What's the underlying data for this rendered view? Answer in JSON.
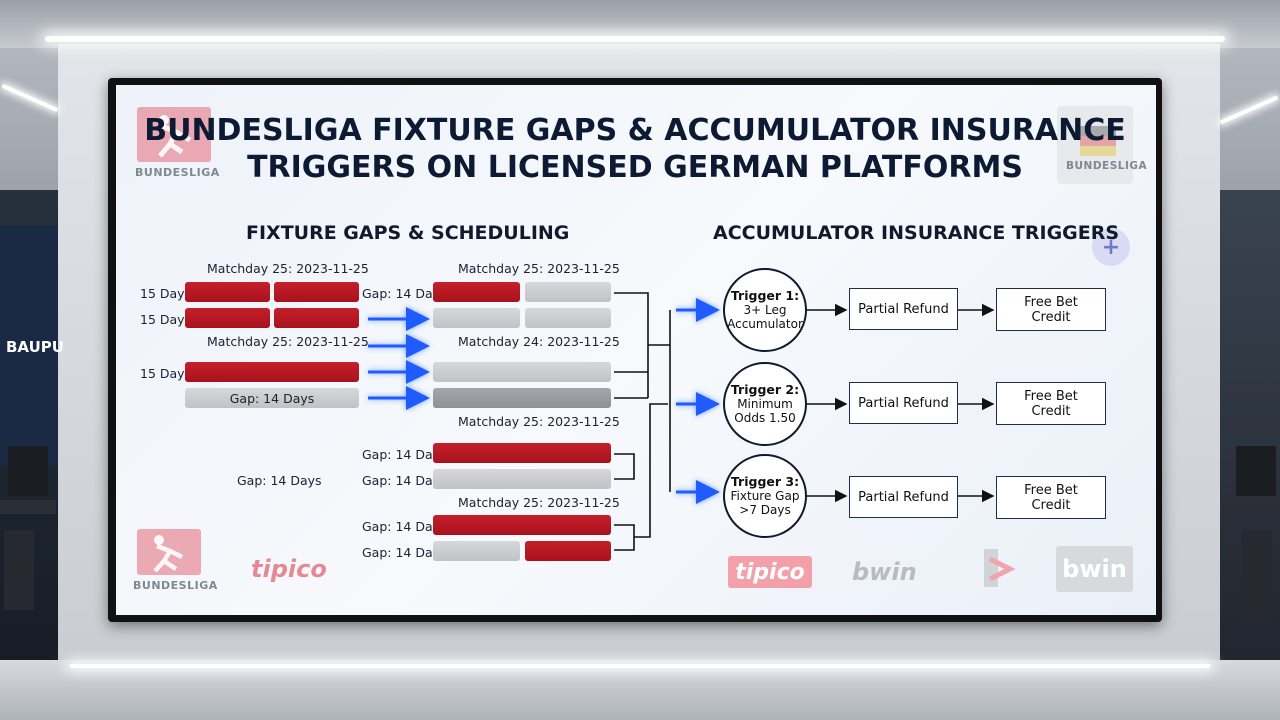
{
  "room": {
    "side_sign": "BAUPU"
  },
  "title": {
    "line1": "BUNDESLIGA FIXTURE GAPS & ACCUMULATOR INSURANCE",
    "line2": "TRIGGERS ON LICENSED GERMAN PLATFORMS"
  },
  "logos": {
    "bundesliga_top": "BUNDESLIGA",
    "bundesliga_top_right": "BUNDESLIGA",
    "bundesliga_bottom": "BUNDESLIGA",
    "tipico_left": "tipico",
    "tipico_right": "tipico",
    "bwin_1": "bwin",
    "bwin_2": "bwin"
  },
  "left": {
    "heading": "FIXTURE GAPS & SCHEDULING",
    "col1_header_1": "Matchday 25: 2023-11-25",
    "col1_header_2": "Matchday 25: 2023-11-25",
    "col2_header_1": "Matchday 25: 2023-11-25",
    "col2_header_2": "Matchday 24: 2023-11-25",
    "col2_header_3": "Matchday 25: 2023-11-25",
    "col2_header_4": "Matchday 25: 2023-11-25",
    "row_label_1": "15 Days",
    "row_label_2": "15 Days",
    "row_label_3": "15 Days",
    "gap_bar_label": "Gap: 14 Days",
    "gap_mid_label": "Gap: 14 Days",
    "gap_left_label": "Gap: 14 Days",
    "gap_row_1": "Gap: 14 Days",
    "gap_row_2": "Gap: 14 Days",
    "gap_row_3": "Gap: 14 Days",
    "gap_row_4": "Gap: 14 Days"
  },
  "right": {
    "heading": "ACCUMULATOR INSURANCE TRIGGERS",
    "triggers": [
      {
        "title": "Trigger 1:",
        "line1": "3+ Leg",
        "line2": "Accumulator",
        "refund": "Partial Refund",
        "credit1": "Free Bet",
        "credit2": "Credit"
      },
      {
        "title": "Trigger 2:",
        "line1": "Minimum",
        "line2": "Odds 1.50",
        "refund": "Partial Refund",
        "credit1": "Free Bet",
        "credit2": "Credit"
      },
      {
        "title": "Trigger 3:",
        "line1": "Fixture Gap",
        "line2": ">7 Days",
        "refund": "Partial Refund",
        "credit1": "Free Bet",
        "credit2": "Credit"
      }
    ]
  },
  "colors": {
    "red": "#b81824",
    "navy": "#0c1a33",
    "arrow_blue": "#1f5bff"
  }
}
